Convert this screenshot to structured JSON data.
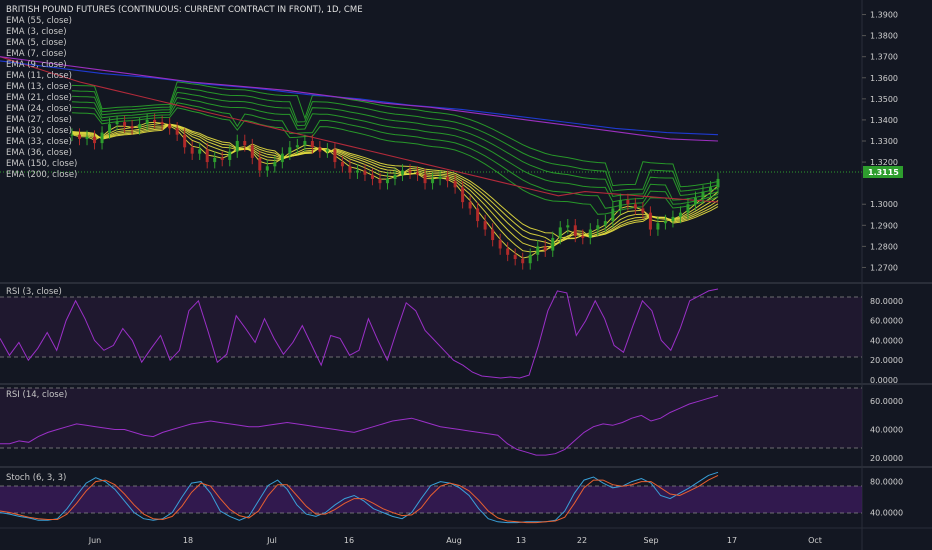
{
  "header": {
    "title": "BRITISH POUND FUTURES (CONTINUOUS: CURRENT CONTRACT IN FRONT), 1D, CME"
  },
  "legend": [
    "EMA (55, close)",
    "EMA (3, close)",
    "EMA (5, close)",
    "EMA (7, close)",
    "EMA (9, close)",
    "EMA (11, close)",
    "EMA (13, close)",
    "EMA (21, close)",
    "EMA (24, close)",
    "EMA (27, close)",
    "EMA (30, close)",
    "EMA (33, close)",
    "EMA (36, close)",
    "EMA (150, close)",
    "EMA (200, close)"
  ],
  "price_axis": [
    "1.3900",
    "1.3800",
    "1.3700",
    "1.3600",
    "1.3500",
    "1.3400",
    "1.3300",
    "1.3200",
    "1.3000",
    "1.2900",
    "1.2800",
    "1.2700"
  ],
  "last_price": "1.3115",
  "rsi3": {
    "title": "RSI (3, close)",
    "ticks": [
      "80.0000",
      "60.0000",
      "40.0000",
      "20.0000",
      "0.0000"
    ]
  },
  "rsi14": {
    "title": "RSI (14, close)",
    "ticks": [
      "60.0000",
      "40.0000",
      "20.0000"
    ]
  },
  "stoch": {
    "title": "Stoch (6, 3, 3)",
    "ticks": [
      "80.0000",
      "40.0000"
    ]
  },
  "time_axis": [
    "Jun",
    "18",
    "Jul",
    "16",
    "Aug",
    "13",
    "22",
    "Sep",
    "17",
    "Oct"
  ],
  "colors": {
    "background": "#131722",
    "ema_fast": "#e8e040",
    "ema_mid": "#2aa52a",
    "ema55": "#b22a3a",
    "ema150": "#1e3ad0",
    "ema200": "#9b2fbf",
    "candle_up": "#2e9e2e",
    "candle_down": "#b02a2a",
    "rsi": "#9b30c8",
    "stoch_k": "#3aa0d8",
    "stoch_d": "#e86030",
    "last_price_bg": "#2e9e2e"
  },
  "chart_data": [
    {
      "type": "candlestick",
      "title": "BRITISH POUND FUTURES (CONTINUOUS: CURRENT CONTRACT IN FRONT), 1D, CME",
      "ylim": [
        1.265,
        1.395
      ],
      "x_labels": [
        "Jun",
        "18",
        "Jul",
        "16",
        "Aug",
        "13",
        "22",
        "Sep",
        "17",
        "Oct"
      ],
      "close": [
        1.333,
        1.331,
        1.332,
        1.329,
        1.334,
        1.338,
        1.339,
        1.337,
        1.336,
        1.338,
        1.34,
        1.339,
        1.338,
        1.336,
        1.333,
        1.327,
        1.324,
        1.326,
        1.32,
        1.322,
        1.321,
        1.325,
        1.33,
        1.328,
        1.322,
        1.316,
        1.318,
        1.32,
        1.324,
        1.327,
        1.328,
        1.33,
        1.327,
        1.325,
        1.326,
        1.32,
        1.318,
        1.315,
        1.316,
        1.314,
        1.312,
        1.31,
        1.312,
        1.314,
        1.316,
        1.315,
        1.314,
        1.31,
        1.312,
        1.313,
        1.311,
        1.308,
        1.301,
        1.298,
        1.292,
        1.288,
        1.283,
        1.279,
        1.276,
        1.274,
        1.272,
        1.276,
        1.28,
        1.278,
        1.284,
        1.289,
        1.29,
        1.285,
        1.284,
        1.288,
        1.29,
        1.292,
        1.298,
        1.302,
        1.3,
        1.298,
        1.296,
        1.288,
        1.291,
        1.292,
        1.294,
        1.296,
        1.3,
        1.303,
        1.306,
        1.308,
        1.312
      ],
      "series": [
        {
          "name": "EMA (55, close)",
          "values": [
            1.37,
            1.366,
            1.362,
            1.358,
            1.355,
            1.352,
            1.349,
            1.346,
            1.343,
            1.34,
            1.337,
            1.334,
            1.331,
            1.328,
            1.325,
            1.322,
            1.319,
            1.316,
            1.313,
            1.31,
            1.307,
            1.304,
            1.306,
            1.305,
            1.304,
            1.303,
            1.302,
            1.301
          ]
        },
        {
          "name": "EMA (150, close)",
          "values": [
            1.368,
            1.365,
            1.362,
            1.36,
            1.357,
            1.355,
            1.352,
            1.35,
            1.347,
            1.345,
            1.342,
            1.339,
            1.336,
            1.334,
            1.333
          ]
        },
        {
          "name": "EMA (200, close)",
          "values": [
            1.37,
            1.367,
            1.364,
            1.361,
            1.358,
            1.356,
            1.354,
            1.351,
            1.348,
            1.346,
            1.343,
            1.34,
            1.337,
            1.334,
            1.331,
            1.33
          ]
        }
      ]
    },
    {
      "type": "line",
      "title": "RSI (3, close)",
      "ylim": [
        0,
        95
      ],
      "series": [
        {
          "name": "RSI (3, close)",
          "values": [
            42,
            25,
            38,
            20,
            32,
            48,
            30,
            60,
            80,
            62,
            40,
            30,
            35,
            52,
            40,
            18,
            32,
            45,
            20,
            30,
            70,
            80,
            50,
            18,
            26,
            65,
            52,
            38,
            62,
            42,
            26,
            38,
            55,
            35,
            15,
            45,
            42,
            25,
            30,
            62,
            40,
            20,
            50,
            78,
            70,
            50,
            40,
            30,
            20,
            15,
            8,
            4,
            3,
            2,
            3,
            2,
            5,
            35,
            70,
            90,
            88,
            45,
            60,
            80,
            62,
            35,
            28,
            55,
            80,
            70,
            40,
            30,
            52,
            80,
            85,
            90,
            92
          ]
        }
      ]
    },
    {
      "type": "line",
      "title": "RSI (14, close)",
      "ylim": [
        15,
        70
      ],
      "series": [
        {
          "name": "RSI (14, close)",
          "values": [
            30,
            30,
            32,
            31,
            35,
            38,
            40,
            42,
            44,
            43,
            42,
            41,
            40,
            40,
            38,
            36,
            35,
            38,
            40,
            42,
            44,
            45,
            46,
            45,
            44,
            43,
            42,
            42,
            43,
            44,
            45,
            44,
            43,
            42,
            41,
            40,
            39,
            38,
            40,
            42,
            44,
            46,
            47,
            48,
            46,
            44,
            42,
            41,
            40,
            39,
            38,
            37,
            36,
            30,
            26,
            24,
            22,
            22,
            23,
            26,
            32,
            38,
            42,
            44,
            43,
            45,
            48,
            50,
            46,
            48,
            52,
            55,
            58,
            60,
            62,
            64
          ]
        }
      ]
    },
    {
      "type": "line",
      "title": "Stoch (6, 3, 3)",
      "ylim": [
        20,
        95
      ],
      "series": [
        {
          "name": "K",
          "values": [
            40,
            38,
            35,
            33,
            30,
            30,
            32,
            45,
            62,
            78,
            85,
            80,
            70,
            55,
            40,
            32,
            30,
            32,
            40,
            60,
            78,
            80,
            65,
            42,
            35,
            30,
            35,
            55,
            75,
            82,
            70,
            50,
            38,
            35,
            40,
            50,
            58,
            62,
            55,
            45,
            40,
            35,
            32,
            40,
            58,
            75,
            80,
            78,
            72,
            62,
            45,
            32,
            28,
            27,
            27,
            28,
            28,
            28,
            30,
            42,
            65,
            82,
            86,
            78,
            72,
            74,
            80,
            84,
            78,
            62,
            58,
            65,
            72,
            80,
            88,
            92
          ]
        },
        {
          "name": "D",
          "values": [
            42,
            40,
            37,
            34,
            32,
            31,
            31,
            38,
            52,
            68,
            80,
            82,
            76,
            64,
            50,
            38,
            32,
            31,
            35,
            48,
            66,
            78,
            74,
            58,
            44,
            36,
            33,
            42,
            62,
            76,
            76,
            62,
            48,
            38,
            38,
            44,
            52,
            58,
            58,
            52,
            45,
            40,
            36,
            37,
            46,
            62,
            74,
            78,
            75,
            68,
            56,
            42,
            33,
            29,
            28,
            27,
            27,
            28,
            29,
            34,
            52,
            72,
            82,
            82,
            76,
            74,
            76,
            80,
            80,
            72,
            64,
            62,
            68,
            74,
            82,
            88
          ]
        }
      ]
    }
  ]
}
